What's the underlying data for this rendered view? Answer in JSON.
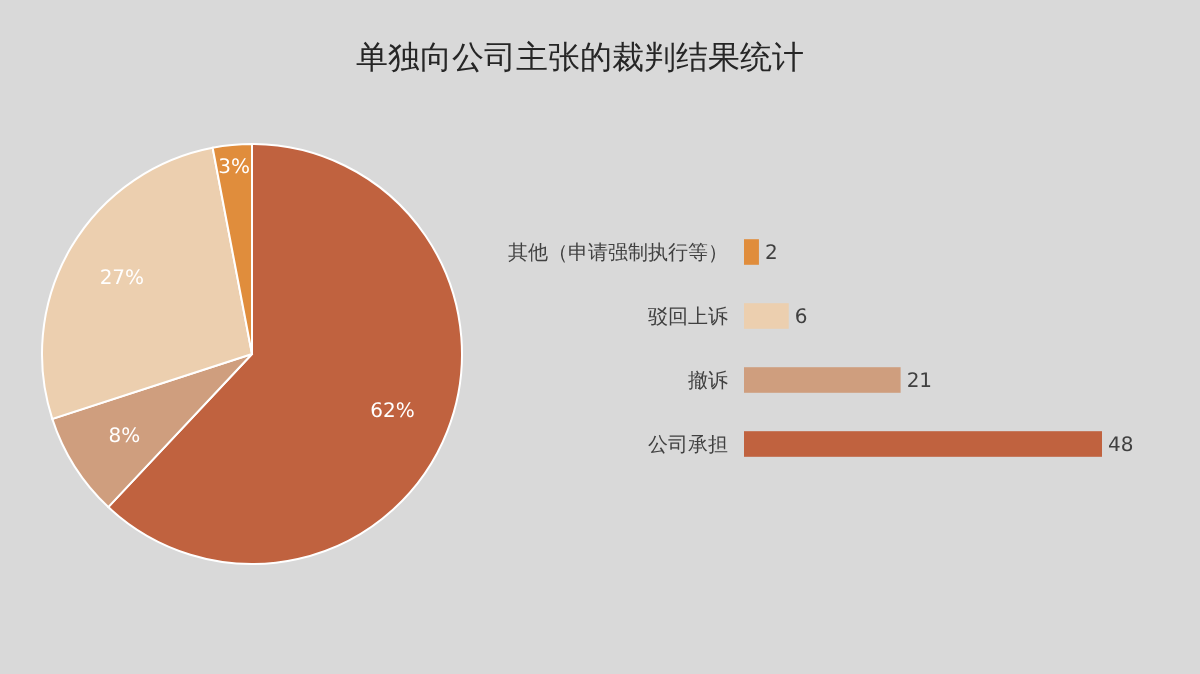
{
  "chart_data": [
    {
      "type": "pie",
      "title": "单独向公司主张的裁判结果统计",
      "categories": [
        null,
        null,
        null,
        null
      ],
      "values": [
        62,
        8,
        27,
        3
      ],
      "colors": [
        "#c0623f",
        "#cf9e7e",
        "#eccfaf",
        "#e08d3c"
      ],
      "value_labels": [
        "62%",
        "8%",
        "27%",
        "3%"
      ]
    },
    {
      "type": "bar",
      "orientation": "horizontal",
      "categories": [
        "其他（申请强制执行等）",
        "驳回上诉",
        "撤诉",
        "公司承担"
      ],
      "values": [
        2,
        6,
        21,
        48
      ],
      "colors": [
        "#e08d3c",
        "#eccfaf",
        "#cf9e7e",
        "#c0623f"
      ],
      "data_labels": true
    }
  ]
}
